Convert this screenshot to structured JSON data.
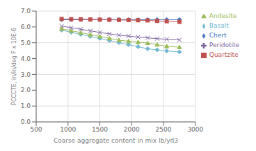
{
  "chart_data": {
    "type": "line",
    "x": [
      900,
      1050,
      1200,
      1350,
      1500,
      1650,
      1800,
      1950,
      2100,
      2250,
      2400,
      2550,
      2750
    ],
    "series": [
      {
        "name": "Basalt",
        "color": "#72B8D4",
        "marker": "diamond",
        "line_style": "solid",
        "values": [
          5.8,
          5.66,
          5.53,
          5.4,
          5.27,
          5.14,
          5.01,
          4.88,
          4.75,
          4.62,
          4.55,
          4.48,
          4.42
        ]
      },
      {
        "name": "Chert",
        "color": "#4472C4",
        "marker": "diamond",
        "line_style": "solid",
        "values": [
          6.46,
          6.46,
          6.46,
          6.46,
          6.46,
          6.46,
          6.46,
          6.46,
          6.46,
          6.46,
          6.46,
          6.46,
          6.46
        ]
      },
      {
        "name": "Quartzite",
        "color": "#C0504D",
        "marker": "square",
        "line_style": "solid",
        "values": [
          6.5,
          6.49,
          6.48,
          6.47,
          6.46,
          6.45,
          6.44,
          6.43,
          6.42,
          6.41,
          6.38,
          6.36,
          6.32
        ]
      },
      {
        "name": "Andesite",
        "color": "#9BBB59",
        "marker": "triangle",
        "line_style": "solid",
        "values": [
          5.88,
          5.76,
          5.64,
          5.52,
          5.4,
          5.28,
          5.16,
          5.1,
          5.04,
          4.98,
          4.88,
          4.78,
          4.72
        ]
      },
      {
        "name": "Peridotite",
        "color": "#8064A2",
        "marker": "x",
        "line_style": "solid",
        "values": [
          6.05,
          5.95,
          5.85,
          5.75,
          5.65,
          5.56,
          5.48,
          5.42,
          5.36,
          5.31,
          5.26,
          5.22,
          5.18
        ]
      }
    ],
    "xlabel": "Coarse aggregate content in mix lb/yd3",
    "ylabel": "PCCCTE, in/in/deg F x 10E-6",
    "xlim": [
      500,
      3000
    ],
    "ylim": [
      0.0,
      7.0
    ],
    "xticks": [
      500,
      1000,
      1500,
      2000,
      2500,
      3000
    ],
    "yticks": [
      {
        "value": 0,
        "label": "0.0"
      },
      {
        "value": 1,
        "label": "1.0"
      },
      {
        "value": 2,
        "label": "2.0"
      },
      {
        "value": 3,
        "label": "3.0"
      },
      {
        "value": 4,
        "label": "4.0"
      },
      {
        "value": 5,
        "label": "5.0"
      },
      {
        "value": 6,
        "label": "6.0"
      },
      {
        "value": 7,
        "label": "7.0"
      }
    ],
    "grid": true,
    "legend": "right"
  }
}
